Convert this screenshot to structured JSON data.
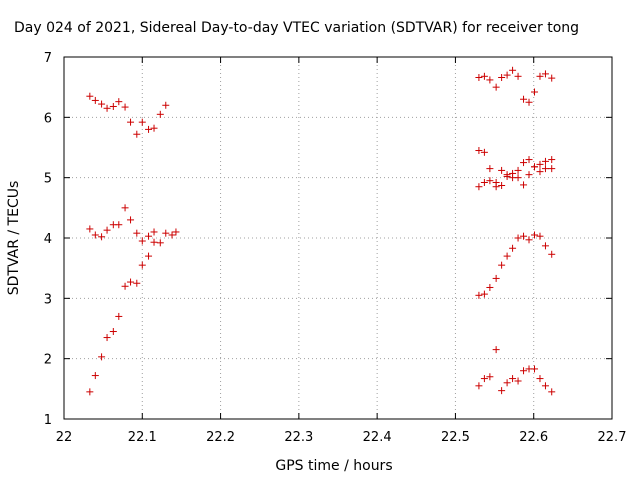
{
  "chart_data": {
    "type": "scatter",
    "title": "Day 024 of 2021, Sidereal Day-to-day VTEC variation (SDTVAR) for receiver tong",
    "xlabel": "GPS time / hours",
    "ylabel": "SDTVAR / TECUs",
    "xlim": [
      22,
      22.7
    ],
    "ylim": [
      1,
      7
    ],
    "grid": true,
    "marker": "+",
    "color": "#cc0000",
    "x_ticks": [
      "22",
      "22.1",
      "22.2",
      "22.3",
      "22.4",
      "22.5",
      "22.6",
      "22.7"
    ],
    "y_ticks": [
      "1",
      "2",
      "3",
      "4",
      "5",
      "6",
      "7"
    ],
    "series": [
      {
        "name": "SDTVAR",
        "points": [
          [
            22.033,
            6.35
          ],
          [
            22.04,
            6.28
          ],
          [
            22.048,
            6.22
          ],
          [
            22.055,
            6.15
          ],
          [
            22.063,
            6.18
          ],
          [
            22.07,
            6.26
          ],
          [
            22.078,
            6.17
          ],
          [
            22.085,
            5.92
          ],
          [
            22.093,
            5.72
          ],
          [
            22.1,
            5.92
          ],
          [
            22.108,
            5.8
          ],
          [
            22.115,
            5.82
          ],
          [
            22.123,
            6.05
          ],
          [
            22.13,
            6.2
          ],
          [
            22.033,
            4.15
          ],
          [
            22.04,
            4.05
          ],
          [
            22.048,
            4.02
          ],
          [
            22.055,
            4.13
          ],
          [
            22.063,
            4.22
          ],
          [
            22.07,
            4.22
          ],
          [
            22.078,
            4.5
          ],
          [
            22.085,
            4.3
          ],
          [
            22.093,
            4.08
          ],
          [
            22.1,
            3.95
          ],
          [
            22.108,
            4.03
          ],
          [
            22.115,
            4.1
          ],
          [
            22.123,
            3.92
          ],
          [
            22.13,
            4.08
          ],
          [
            22.138,
            4.05
          ],
          [
            22.143,
            4.1
          ],
          [
            22.033,
            1.45
          ],
          [
            22.04,
            1.72
          ],
          [
            22.048,
            2.03
          ],
          [
            22.055,
            2.35
          ],
          [
            22.063,
            2.45
          ],
          [
            22.07,
            2.7
          ],
          [
            22.078,
            3.2
          ],
          [
            22.085,
            3.27
          ],
          [
            22.093,
            3.25
          ],
          [
            22.1,
            3.55
          ],
          [
            22.108,
            3.7
          ],
          [
            22.115,
            3.93
          ],
          [
            22.53,
            6.66
          ],
          [
            22.537,
            6.68
          ],
          [
            22.544,
            6.62
          ],
          [
            22.552,
            6.5
          ],
          [
            22.559,
            6.66
          ],
          [
            22.566,
            6.7
          ],
          [
            22.573,
            6.78
          ],
          [
            22.58,
            6.68
          ],
          [
            22.587,
            6.3
          ],
          [
            22.594,
            6.25
          ],
          [
            22.601,
            6.42
          ],
          [
            22.608,
            6.68
          ],
          [
            22.615,
            6.72
          ],
          [
            22.623,
            6.65
          ],
          [
            22.53,
            5.45
          ],
          [
            22.537,
            5.42
          ],
          [
            22.544,
            5.15
          ],
          [
            22.552,
            4.92
          ],
          [
            22.559,
            5.12
          ],
          [
            22.566,
            5.02
          ],
          [
            22.573,
            5.0
          ],
          [
            22.58,
            5.12
          ],
          [
            22.587,
            5.25
          ],
          [
            22.594,
            5.3
          ],
          [
            22.601,
            5.18
          ],
          [
            22.608,
            5.22
          ],
          [
            22.615,
            5.27
          ],
          [
            22.623,
            5.3
          ],
          [
            22.53,
            4.85
          ],
          [
            22.537,
            4.92
          ],
          [
            22.544,
            4.95
          ],
          [
            22.552,
            4.85
          ],
          [
            22.559,
            4.87
          ],
          [
            22.566,
            5.05
          ],
          [
            22.573,
            5.07
          ],
          [
            22.58,
            5.0
          ],
          [
            22.587,
            4.88
          ],
          [
            22.594,
            5.05
          ],
          [
            22.601,
            5.18
          ],
          [
            22.608,
            5.1
          ],
          [
            22.615,
            5.15
          ],
          [
            22.623,
            5.15
          ],
          [
            22.53,
            3.05
          ],
          [
            22.537,
            3.07
          ],
          [
            22.544,
            3.18
          ],
          [
            22.552,
            3.33
          ],
          [
            22.559,
            3.55
          ],
          [
            22.566,
            3.7
          ],
          [
            22.573,
            3.83
          ],
          [
            22.58,
            4.0
          ],
          [
            22.587,
            4.03
          ],
          [
            22.594,
            3.97
          ],
          [
            22.601,
            4.05
          ],
          [
            22.608,
            4.03
          ],
          [
            22.615,
            3.87
          ],
          [
            22.623,
            3.73
          ],
          [
            22.53,
            1.55
          ],
          [
            22.537,
            1.67
          ],
          [
            22.544,
            1.7
          ],
          [
            22.552,
            2.15
          ],
          [
            22.559,
            1.47
          ],
          [
            22.566,
            1.6
          ],
          [
            22.573,
            1.67
          ],
          [
            22.58,
            1.63
          ],
          [
            22.587,
            1.8
          ],
          [
            22.594,
            1.83
          ],
          [
            22.601,
            1.83
          ],
          [
            22.608,
            1.67
          ],
          [
            22.615,
            1.55
          ],
          [
            22.623,
            1.45
          ]
        ]
      }
    ]
  }
}
